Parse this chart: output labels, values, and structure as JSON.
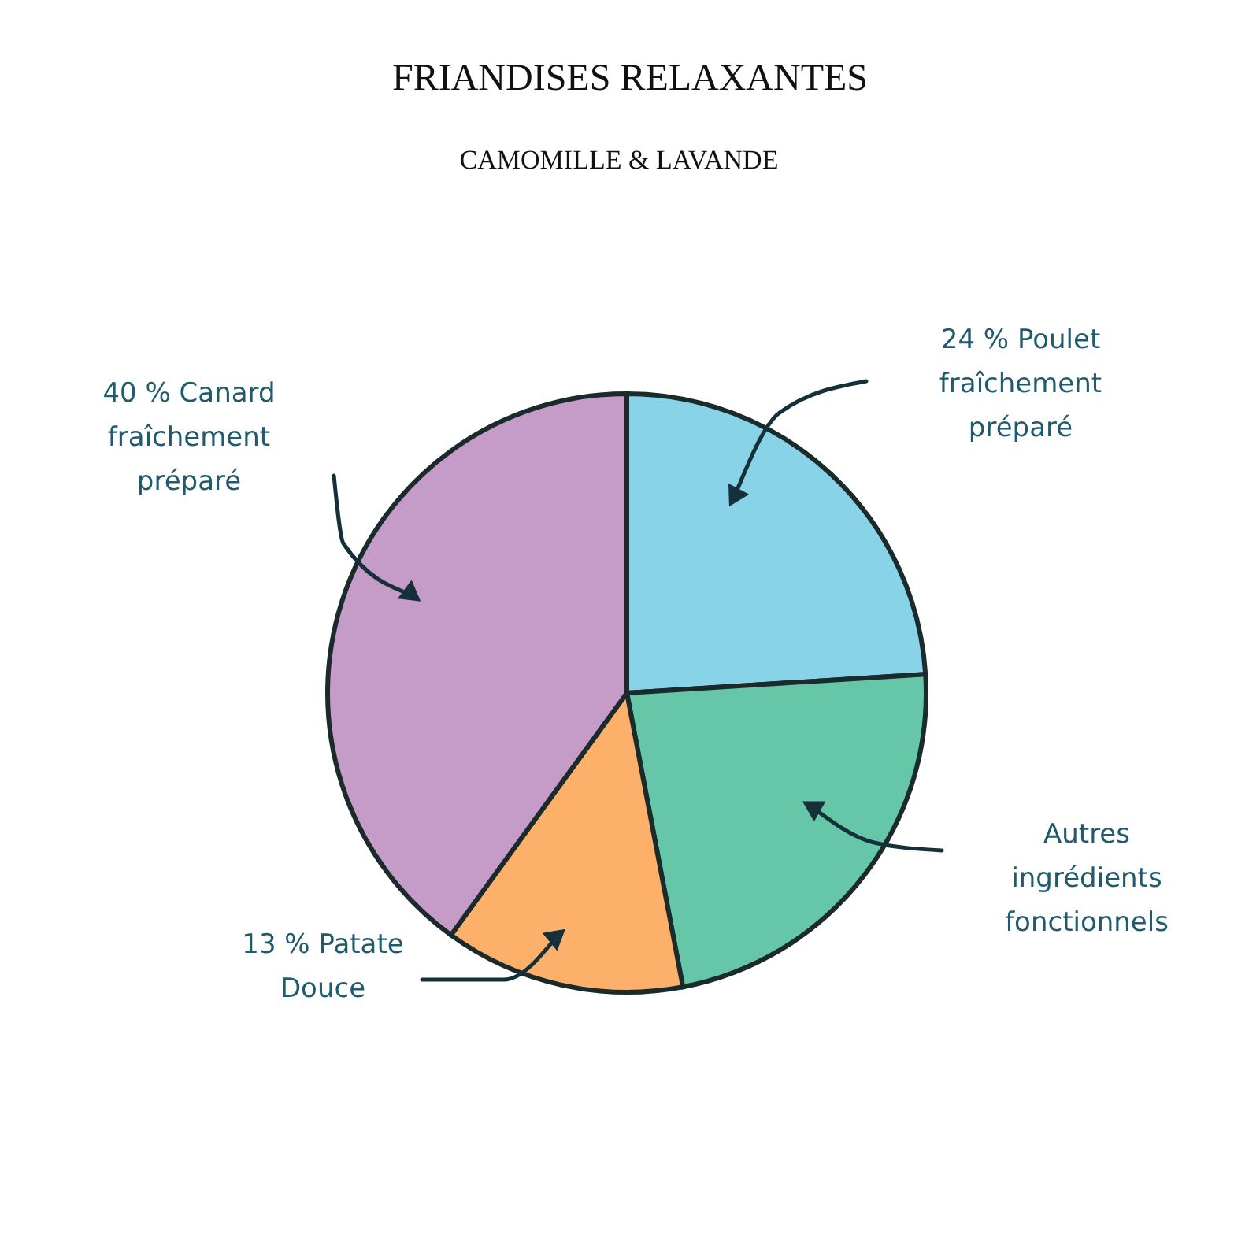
{
  "chart_data": {
    "type": "pie",
    "title": "FRIANDISES RELAXANTES",
    "subtitle": "CAMOMILLE & LAVANDE",
    "categories": [
      "24 % Poulet\nfraîchement\npréparé",
      "Autres\ningrédients\nfonctionnels",
      "13 % Patate\nDouce",
      "40 % Canard\nfraîchement\npréparé"
    ],
    "values": [
      24,
      23,
      13,
      40
    ],
    "colors": [
      "#89d3e8",
      "#66c6a8",
      "#fdb06a",
      "#c59bc8"
    ],
    "legend": false
  }
}
